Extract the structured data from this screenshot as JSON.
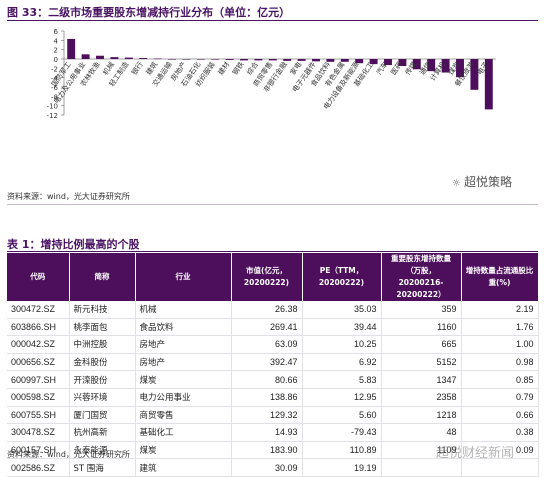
{
  "figure": {
    "title": "图 33：二级市场重要股东增减持行业分布（单位：亿元）",
    "source": "资料来源：wind，光大证券研究所",
    "watermark": "超悦策略"
  },
  "chart_data": {
    "type": "bar",
    "title": "",
    "xlabel": "",
    "ylabel": "",
    "ylim": [
      -12,
      6
    ],
    "yticks": [
      -12,
      -10,
      -8,
      -6,
      -4,
      -2,
      0,
      2,
      4,
      6
    ],
    "bar_color": "#4d0e5c",
    "categories": [
      "国防军工",
      "电力及公用事业",
      "农林牧渔",
      "机械",
      "轻工制造",
      "银行",
      "建筑",
      "交通运输",
      "房地产",
      "石油石化",
      "纺织服装",
      "建材",
      "钢铁",
      "综合",
      "商贸零售",
      "非银行金融",
      "家电",
      "电子元器件",
      "食品饮料",
      "有色金属",
      "电力设备及新能源",
      "基础化工",
      "汽车",
      "医药",
      "传媒",
      "通信",
      "计算机",
      "煤炭",
      "餐饮旅游",
      "电子"
    ],
    "values": [
      4.3,
      1.0,
      0.7,
      0.4,
      0.3,
      0.2,
      0.1,
      0.0,
      -0.1,
      -0.1,
      -0.1,
      -0.2,
      -0.3,
      -0.3,
      -0.3,
      -0.4,
      -0.4,
      -0.5,
      -0.6,
      -0.6,
      -0.9,
      -1.1,
      -1.3,
      -1.5,
      -2.2,
      -2.6,
      -2.9,
      -3.9,
      -6.6,
      -10.8
    ],
    "tick_labels": [
      "国防军工",
      "电力及公用事业",
      "农林牧渔",
      "机械",
      "轻工制造",
      "银行",
      "建筑",
      "交通运输",
      "房地产",
      "石油石化",
      "纺织服装",
      "建材",
      "钢铁",
      "综合",
      "商贸零售",
      "非银行金融",
      "家电",
      "电子元器件",
      "食品饮料",
      "有色金属",
      "电力设备及新能源",
      "基础化工",
      "汽车",
      "医药",
      "传媒",
      "通信",
      "计算机",
      "煤炭",
      "餐饮旅游",
      "电子"
    ]
  },
  "table": {
    "title": "表 1：增持比例最高的个股",
    "headers": [
      "代码",
      "简称",
      "行业",
      "市值(亿元，20200222)",
      "PE（TTM，20200222)",
      "重要股东增持数量（万股，20200216-20200222）",
      "增持数量占流通股比重(%)"
    ],
    "rows": [
      [
        "300472.SZ",
        "新元科技",
        "机械",
        "26.38",
        "35.03",
        "359",
        "2.19"
      ],
      [
        "603866.SH",
        "桃李面包",
        "食品饮料",
        "269.41",
        "39.44",
        "1160",
        "1.76"
      ],
      [
        "000042.SZ",
        "中洲控股",
        "房地产",
        "63.09",
        "10.25",
        "665",
        "1.00"
      ],
      [
        "000656.SZ",
        "金科股份",
        "房地产",
        "392.47",
        "6.92",
        "5152",
        "0.98"
      ],
      [
        "600997.SH",
        "开滦股份",
        "煤炭",
        "80.66",
        "5.83",
        "1347",
        "0.85"
      ],
      [
        "000598.SZ",
        "兴蓉环境",
        "电力公用事业",
        "138.86",
        "12.95",
        "2358",
        "0.79"
      ],
      [
        "600755.SH",
        "厦门国贸",
        "商贸零售",
        "129.32",
        "5.60",
        "1218",
        "0.66"
      ],
      [
        "300478.SZ",
        "杭州高新",
        "基础化工",
        "14.93",
        "-79.43",
        "48",
        "0.38"
      ],
      [
        "600157.SH",
        "永泰能源",
        "煤炭",
        "183.90",
        "110.89",
        "1109",
        "0.09"
      ],
      [
        "002586.SZ",
        "ST 围海",
        "建筑",
        "30.09",
        "19.19",
        "",
        ""
      ]
    ],
    "source": "资料来源：wind，光大证券研究所",
    "watermark": "超悦财经新闻"
  }
}
